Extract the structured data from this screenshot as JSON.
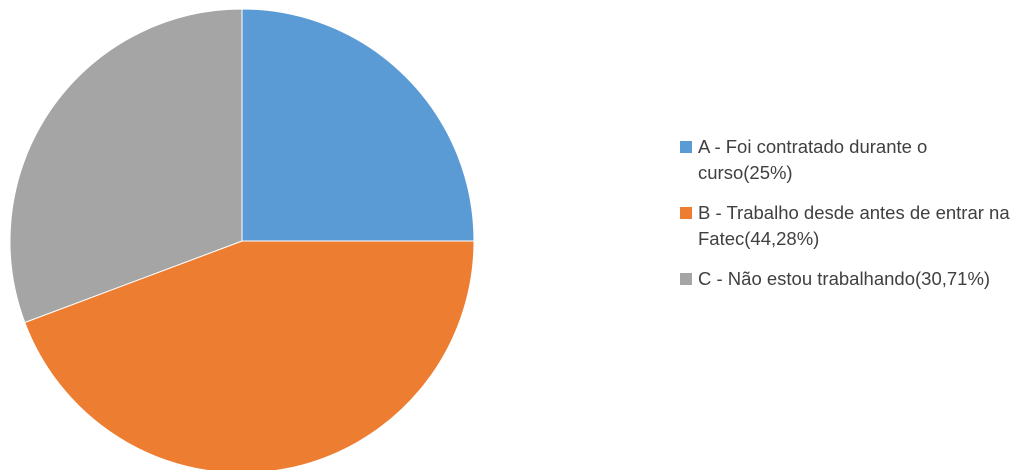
{
  "chart_data": {
    "type": "pie",
    "categories": [
      "A - Foi contratado durante o curso(25%)",
      "B - Trabalho desde antes de entrar na Fatec(44,28%)",
      "C - Não estou trabalhando(30,71%)"
    ],
    "values": [
      25,
      44.28,
      30.71
    ],
    "colors": [
      "#5b9bd5",
      "#ed7d31",
      "#a5a5a5"
    ],
    "legend": "right"
  }
}
